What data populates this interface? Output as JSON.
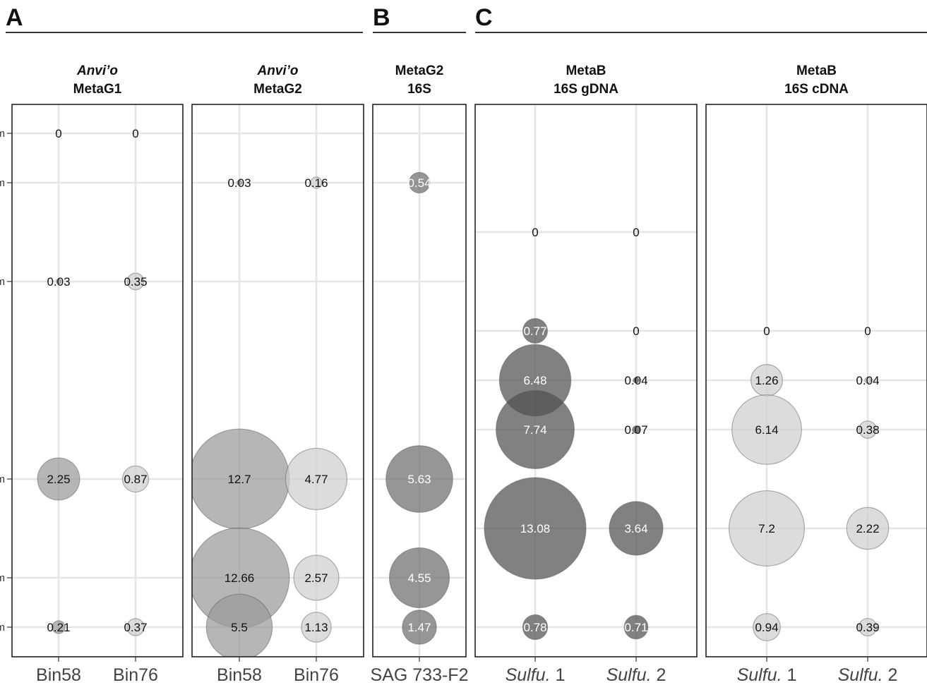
{
  "sections": [
    {
      "letter": "A",
      "panels": [
        0,
        1
      ]
    },
    {
      "letter": "B",
      "panels": [
        2
      ]
    },
    {
      "letter": "C",
      "panels": [
        3,
        4
      ]
    }
  ],
  "y_tick_labels": [
    "m",
    "m",
    "m",
    "m",
    "m",
    "m"
  ],
  "chart_data": [
    {
      "type": "scatter",
      "title_italic": "Anvi’o",
      "title": "MetaG1",
      "categories": [
        {
          "text": "Bin58",
          "italic": ""
        },
        {
          "text": "Bin76",
          "italic": ""
        }
      ],
      "shade": [
        "mid",
        "light"
      ],
      "points": [
        {
          "col": 0,
          "row": 0,
          "value": "0"
        },
        {
          "col": 1,
          "row": 0,
          "value": "0"
        },
        {
          "col": 0,
          "row": 3,
          "value": "0.03"
        },
        {
          "col": 1,
          "row": 3,
          "value": "0.35"
        },
        {
          "col": 0,
          "row": 7,
          "value": "2.25"
        },
        {
          "col": 1,
          "row": 7,
          "value": "0.87"
        },
        {
          "col": 0,
          "row": 10,
          "value": "0.21"
        },
        {
          "col": 1,
          "row": 10,
          "value": "0.37"
        }
      ]
    },
    {
      "type": "scatter",
      "title_italic": "Anvi’o",
      "title": "MetaG2",
      "categories": [
        {
          "text": "Bin58",
          "italic": ""
        },
        {
          "text": "Bin76",
          "italic": ""
        }
      ],
      "shade": [
        "mid",
        "light"
      ],
      "points": [
        {
          "col": 0,
          "row": 1,
          "value": "0.03"
        },
        {
          "col": 1,
          "row": 1,
          "value": "0.16"
        },
        {
          "col": 0,
          "row": 7,
          "value": "12.7"
        },
        {
          "col": 1,
          "row": 7,
          "value": "4.77"
        },
        {
          "col": 0,
          "row": 9,
          "value": "12.66"
        },
        {
          "col": 1,
          "row": 9,
          "value": "2.57"
        },
        {
          "col": 0,
          "row": 10,
          "value": "5.5"
        },
        {
          "col": 1,
          "row": 10,
          "value": "1.13"
        }
      ]
    },
    {
      "type": "scatter",
      "title_italic": "",
      "title": "MetaG2",
      "title2": "16S",
      "categories": [
        {
          "text": "SAG 733-F2",
          "italic": ""
        }
      ],
      "shade": [
        "dark"
      ],
      "points": [
        {
          "col": 0,
          "row": 1,
          "value": "0.54"
        },
        {
          "col": 0,
          "row": 7,
          "value": "5.63"
        },
        {
          "col": 0,
          "row": 9,
          "value": "4.55"
        },
        {
          "col": 0,
          "row": 10,
          "value": "1.47"
        }
      ]
    },
    {
      "type": "scatter",
      "title_italic": "",
      "title": "MetaB",
      "title2": "16S gDNA",
      "categories": [
        {
          "italic": "Sulfu.",
          "text": " 1"
        },
        {
          "italic": "Sulfu.",
          "text": " 2"
        }
      ],
      "shade": [
        "darker",
        "darker"
      ],
      "points": [
        {
          "col": 0,
          "row": 2,
          "value": "0"
        },
        {
          "col": 1,
          "row": 2,
          "value": "0"
        },
        {
          "col": 0,
          "row": 4,
          "value": "0.77"
        },
        {
          "col": 1,
          "row": 4,
          "value": "0"
        },
        {
          "col": 0,
          "row": 5,
          "value": "6.48"
        },
        {
          "col": 1,
          "row": 5,
          "value": "0.04"
        },
        {
          "col": 0,
          "row": 6,
          "value": "7.74"
        },
        {
          "col": 1,
          "row": 6,
          "value": "0.07"
        },
        {
          "col": 0,
          "row": 8,
          "value": "13.08"
        },
        {
          "col": 1,
          "row": 8,
          "value": "3.64"
        },
        {
          "col": 0,
          "row": 10,
          "value": "0.78"
        },
        {
          "col": 1,
          "row": 10,
          "value": "0.71"
        }
      ]
    },
    {
      "type": "scatter",
      "title_italic": "",
      "title": "MetaB",
      "title2": "16S cDNA",
      "categories": [
        {
          "italic": "Sulfu.",
          "text": " 1"
        },
        {
          "italic": "Sulfu.",
          "text": " 2"
        }
      ],
      "shade": [
        "light",
        "light"
      ],
      "points": [
        {
          "col": 0,
          "row": 4,
          "value": "0"
        },
        {
          "col": 1,
          "row": 4,
          "value": "0"
        },
        {
          "col": 0,
          "row": 5,
          "value": "1.26"
        },
        {
          "col": 1,
          "row": 5,
          "value": "0.04"
        },
        {
          "col": 0,
          "row": 6,
          "value": "6.14"
        },
        {
          "col": 1,
          "row": 6,
          "value": "0.38"
        },
        {
          "col": 0,
          "row": 8,
          "value": "7.2"
        },
        {
          "col": 1,
          "row": 8,
          "value": "2.22"
        },
        {
          "col": 0,
          "row": 10,
          "value": "0.94"
        },
        {
          "col": 1,
          "row": 10,
          "value": "0.39"
        }
      ]
    }
  ],
  "colors": {
    "light": "#cfcfcf",
    "mid": "#9a9a9a",
    "dark": "#6e6e6e",
    "darker": "#505050",
    "grid": "#e6e6e6",
    "frame": "#222222"
  }
}
